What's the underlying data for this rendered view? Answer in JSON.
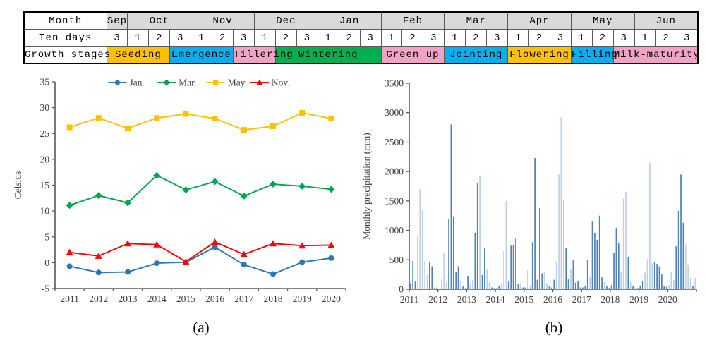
{
  "figure": {
    "caption_a": "(a)",
    "caption_b": "(b)"
  },
  "calendar_table": {
    "row_headers": [
      "Month",
      "Ten days",
      "Growth stages"
    ],
    "months": [
      {
        "label": "Sep",
        "span": 1
      },
      {
        "label": "Oct",
        "span": 3
      },
      {
        "label": "Nov",
        "span": 3
      },
      {
        "label": "Dec",
        "span": 3
      },
      {
        "label": "Jan",
        "span": 3
      },
      {
        "label": "Feb",
        "span": 3
      },
      {
        "label": "Mar",
        "span": 3
      },
      {
        "label": "Apr",
        "span": 3
      },
      {
        "label": "May",
        "span": 3
      },
      {
        "label": "Jun",
        "span": 3
      }
    ],
    "ten_days": [
      "3",
      "1",
      "2",
      "3",
      "1",
      "2",
      "3",
      "1",
      "2",
      "3",
      "1",
      "2",
      "3",
      "1",
      "2",
      "3",
      "1",
      "2",
      "3",
      "1",
      "2",
      "3",
      "1",
      "2",
      "3",
      "1",
      "2",
      "3"
    ],
    "growth_stages": [
      {
        "label": "Seeding",
        "span": 3,
        "color": "#FFC000"
      },
      {
        "label": "Emergence",
        "span": 3,
        "color": "#00B0F0"
      },
      {
        "label": "Tillering",
        "span": 2,
        "color": "#F2A2C4"
      },
      {
        "label": "Wintering",
        "span": 5,
        "color": "#00B050"
      },
      {
        "label": "Green up",
        "span": 3,
        "color": "#F2A2C4"
      },
      {
        "label": "Jointing",
        "span": 3,
        "color": "#00B0F0"
      },
      {
        "label": "Flowering",
        "span": 3,
        "color": "#FFC000"
      },
      {
        "label": "Filling",
        "span": 2,
        "color": "#00B0F0"
      },
      {
        "label": "Milk-maturity",
        "span": 4,
        "color": "#F2A2C4"
      }
    ],
    "month_row_bg": "#D9D9D9"
  },
  "chart_data": [
    {
      "type": "line",
      "caption": "(a)",
      "ylabel": "Celsius",
      "ylim": [
        -5,
        35
      ],
      "yticks": [
        -5,
        0,
        5,
        10,
        15,
        20,
        25,
        30,
        35
      ],
      "categories": [
        "2011",
        "2012",
        "2013",
        "2014",
        "2015",
        "2016",
        "2017",
        "2018",
        "2019",
        "2020"
      ],
      "legend_position": "top",
      "grid": false,
      "series": [
        {
          "name": "Jan.",
          "color": "#2E75B6",
          "marker": "circle",
          "values": [
            -0.7,
            -1.9,
            -1.8,
            -0.1,
            0.1,
            3.0,
            -0.4,
            -2.2,
            0.1,
            0.9
          ]
        },
        {
          "name": "Mar.",
          "color": "#00A550",
          "marker": "diamond",
          "values": [
            11.1,
            13.0,
            11.6,
            16.9,
            14.1,
            15.7,
            12.9,
            15.2,
            14.8,
            14.2
          ]
        },
        {
          "name": "May",
          "color": "#FFC000",
          "marker": "square",
          "values": [
            26.2,
            28.0,
            26.0,
            28.0,
            28.8,
            27.9,
            25.7,
            26.4,
            29.0,
            27.9
          ]
        },
        {
          "name": "Nov.",
          "color": "#FF0000",
          "marker": "triangle",
          "values": [
            2.0,
            1.3,
            3.7,
            3.5,
            0.2,
            4.0,
            1.6,
            3.7,
            3.3,
            3.4
          ]
        }
      ]
    },
    {
      "type": "bar",
      "caption": "(b)",
      "ylabel": "Monthly precipitation (mm)",
      "ylim": [
        0,
        3500
      ],
      "yticks": [
        0,
        500,
        1000,
        1500,
        2000,
        2500,
        3000,
        3500
      ],
      "x_years": [
        "2011",
        "2012",
        "2013",
        "2014",
        "2015",
        "2016",
        "2017",
        "2018",
        "2019",
        "2020"
      ],
      "grid": false,
      "bar_colors": {
        "d": "#4E81BD",
        "l": "#BCD0E8"
      },
      "monthly": [
        {
          "year": "2011",
          "values": [
            100,
            480,
            130,
            900,
            1700,
            1350,
            480,
            240,
            460,
            390,
            20,
            30
          ],
          "shades": [
            "d",
            "d",
            "d",
            "l",
            "l",
            "l",
            "l",
            "l",
            "d",
            "d",
            "d",
            "d"
          ]
        },
        {
          "year": "2012",
          "values": [
            10,
            180,
            620,
            110,
            1200,
            2800,
            1240,
            300,
            390,
            150,
            60,
            20
          ],
          "shades": [
            "d",
            "l",
            "l",
            "l",
            "d",
            "d",
            "d",
            "d",
            "d",
            "l",
            "d",
            "d"
          ]
        },
        {
          "year": "2013",
          "values": [
            230,
            100,
            160,
            960,
            1800,
            1930,
            240,
            700,
            340,
            120,
            30,
            20
          ],
          "shades": [
            "d",
            "l",
            "l",
            "d",
            "d",
            "l",
            "d",
            "d",
            "l",
            "l",
            "d",
            "d"
          ]
        },
        {
          "year": "2014",
          "values": [
            20,
            60,
            100,
            650,
            1500,
            130,
            740,
            750,
            860,
            90,
            100,
            30
          ],
          "shades": [
            "d",
            "d",
            "l",
            "l",
            "l",
            "d",
            "d",
            "d",
            "d",
            "d",
            "l",
            "d"
          ]
        },
        {
          "year": "2015",
          "values": [
            30,
            320,
            60,
            800,
            2230,
            160,
            1380,
            270,
            300,
            100,
            60,
            30
          ],
          "shades": [
            "d",
            "l",
            "l",
            "d",
            "d",
            "d",
            "d",
            "d",
            "l",
            "l",
            "d",
            "d"
          ]
        },
        {
          "year": "2016",
          "values": [
            160,
            470,
            1950,
            2920,
            1510,
            700,
            180,
            340,
            490,
            110,
            140,
            30
          ],
          "shades": [
            "d",
            "l",
            "l",
            "l",
            "l",
            "d",
            "d",
            "l",
            "d",
            "d",
            "d",
            "d"
          ]
        },
        {
          "year": "2017",
          "values": [
            30,
            60,
            500,
            210,
            1150,
            950,
            840,
            1250,
            200,
            120,
            60,
            20
          ],
          "shades": [
            "d",
            "d",
            "d",
            "l",
            "d",
            "d",
            "d",
            "d",
            "d",
            "l",
            "d",
            "d"
          ]
        },
        {
          "year": "2018",
          "values": [
            70,
            620,
            1040,
            780,
            290,
            1540,
            1650,
            550,
            120,
            50,
            30,
            20
          ],
          "shades": [
            "d",
            "d",
            "d",
            "d",
            "l",
            "l",
            "l",
            "d",
            "l",
            "d",
            "l",
            "d"
          ]
        },
        {
          "year": "2019",
          "values": [
            60,
            140,
            280,
            510,
            2150,
            440,
            460,
            430,
            390,
            250,
            60,
            40
          ],
          "shades": [
            "d",
            "d",
            "l",
            "l",
            "l",
            "l",
            "d",
            "d",
            "d",
            "d",
            "d",
            "d"
          ]
        },
        {
          "year": "2020",
          "values": [
            70,
            290,
            160,
            730,
            1330,
            1950,
            1130,
            760,
            420,
            190,
            60,
            190
          ],
          "shades": [
            "l",
            "l",
            "l",
            "d",
            "d",
            "d",
            "d",
            "l",
            "l",
            "l",
            "d",
            "l"
          ]
        }
      ]
    }
  ],
  "style_colors": {
    "axis": "#595959",
    "tick_text": "#404040",
    "table_grid": "#5a5a5a"
  }
}
